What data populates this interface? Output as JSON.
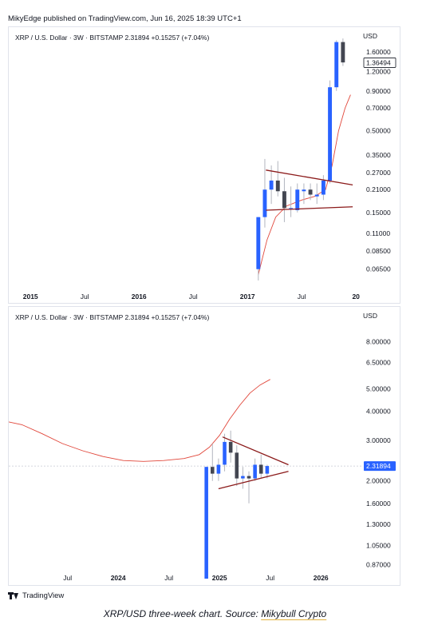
{
  "header": {
    "published": "MikyEdge published on TradingView.com, Jun 16, 2025 18:39 UTC+1"
  },
  "chart_data": [
    {
      "type": "candlestick",
      "legend": "XRP / U.S. Dollar · 3W · BITSTAMP  2.31894  +0.15257 (+7.04%)",
      "currency": "USD",
      "scale": "log",
      "ylim": [
        0.05,
        2.0
      ],
      "y_ticks": [
        "1.60000",
        "1.20000",
        "0.90000",
        "0.70000",
        "0.50000",
        "0.35000",
        "0.27000",
        "0.21000",
        "0.15000",
        "0.11000",
        "0.08500",
        "0.06500"
      ],
      "y_tick_values": [
        1.6,
        1.2,
        0.9,
        0.7,
        0.5,
        0.35,
        0.27,
        0.21,
        0.15,
        0.11,
        0.085,
        0.065
      ],
      "price_label": "1.36494",
      "price_label_value": 1.36494,
      "x_labels": [
        {
          "t": 0.0,
          "text": "2015",
          "bold": true
        },
        {
          "t": 0.5,
          "text": "Jul",
          "bold": false
        },
        {
          "t": 1.0,
          "text": "2016",
          "bold": true
        },
        {
          "t": 1.5,
          "text": "Jul",
          "bold": false
        },
        {
          "t": 2.0,
          "text": "2017",
          "bold": true
        },
        {
          "t": 2.5,
          "text": "Jul",
          "bold": false
        },
        {
          "t": 3.0,
          "text": "20",
          "bold": true
        }
      ],
      "xlim": [
        -0.2,
        3.05
      ],
      "candles": [
        {
          "t": 2.1,
          "o": 0.065,
          "h": 0.14,
          "l": 0.055,
          "c": 0.14
        },
        {
          "t": 2.16,
          "o": 0.14,
          "h": 0.33,
          "l": 0.12,
          "c": 0.21
        },
        {
          "t": 2.22,
          "o": 0.21,
          "h": 0.3,
          "l": 0.17,
          "c": 0.24
        },
        {
          "t": 2.28,
          "o": 0.24,
          "h": 0.32,
          "l": 0.19,
          "c": 0.205
        },
        {
          "t": 2.34,
          "o": 0.205,
          "h": 0.25,
          "l": 0.13,
          "c": 0.16
        },
        {
          "t": 2.4,
          "o": 0.16,
          "h": 0.22,
          "l": 0.14,
          "c": 0.16
        },
        {
          "t": 2.46,
          "o": 0.155,
          "h": 0.23,
          "l": 0.15,
          "c": 0.21
        },
        {
          "t": 2.52,
          "o": 0.205,
          "h": 0.23,
          "l": 0.17,
          "c": 0.21
        },
        {
          "t": 2.58,
          "o": 0.21,
          "h": 0.23,
          "l": 0.18,
          "c": 0.195
        },
        {
          "t": 2.64,
          "o": 0.19,
          "h": 0.23,
          "l": 0.17,
          "c": 0.195
        },
        {
          "t": 2.7,
          "o": 0.195,
          "h": 0.26,
          "l": 0.18,
          "c": 0.24
        },
        {
          "t": 2.76,
          "o": 0.24,
          "h": 1.05,
          "l": 0.23,
          "c": 0.95
        },
        {
          "t": 2.82,
          "o": 0.95,
          "h": 1.9,
          "l": 0.9,
          "c": 1.85
        },
        {
          "t": 2.88,
          "o": 1.85,
          "h": 1.95,
          "l": 1.3,
          "c": 1.37
        }
      ],
      "ma": [
        {
          "t": 2.1,
          "v": 0.06
        },
        {
          "t": 2.18,
          "v": 0.1
        },
        {
          "t": 2.26,
          "v": 0.14
        },
        {
          "t": 2.36,
          "v": 0.165
        },
        {
          "t": 2.5,
          "v": 0.18
        },
        {
          "t": 2.62,
          "v": 0.19
        },
        {
          "t": 2.72,
          "v": 0.21
        },
        {
          "t": 2.78,
          "v": 0.3
        },
        {
          "t": 2.84,
          "v": 0.5
        },
        {
          "t": 2.9,
          "v": 0.7
        },
        {
          "t": 2.95,
          "v": 0.85
        }
      ],
      "trendlines": [
        {
          "t1": 2.17,
          "v1": 0.28,
          "t2": 2.97,
          "v2": 0.225
        },
        {
          "t1": 2.17,
          "v1": 0.155,
          "t2": 2.97,
          "v2": 0.163
        }
      ]
    },
    {
      "type": "candlestick",
      "legend": "XRP / U.S. Dollar · 3W · BITSTAMP  2.31894  +0.15257 (+7.04%)",
      "currency": "USD",
      "scale": "log",
      "ylim": [
        0.78,
        9.5
      ],
      "y_ticks": [
        "8.00000",
        "6.50000",
        "5.00000",
        "4.00000",
        "3.00000",
        "2.00000",
        "1.60000",
        "1.30000",
        "1.05000",
        "0.87000"
      ],
      "y_tick_values": [
        8.0,
        6.5,
        5.0,
        4.0,
        3.0,
        2.0,
        1.6,
        1.3,
        1.05,
        0.87
      ],
      "price_label": "2.31894",
      "price_label_value": 2.31894,
      "x_labels": [
        {
          "t": 2023.5,
          "text": "Jul",
          "bold": false
        },
        {
          "t": 2024.0,
          "text": "2024",
          "bold": true
        },
        {
          "t": 2024.5,
          "text": "Jul",
          "bold": false
        },
        {
          "t": 2025.0,
          "text": "2025",
          "bold": true
        },
        {
          "t": 2025.5,
          "text": "Jul",
          "bold": false
        },
        {
          "t": 2026.0,
          "text": "2026",
          "bold": true
        }
      ],
      "xlim": [
        2022.92,
        2026.4
      ],
      "candles": [
        {
          "t": 2024.87,
          "o": 0.6,
          "h": 2.3,
          "l": 0.5,
          "c": 2.3
        },
        {
          "t": 2024.93,
          "o": 2.3,
          "h": 2.9,
          "l": 2.0,
          "c": 2.15
        },
        {
          "t": 2024.99,
          "o": 2.15,
          "h": 2.5,
          "l": 2.0,
          "c": 2.35
        },
        {
          "t": 2025.05,
          "o": 2.35,
          "h": 3.2,
          "l": 2.2,
          "c": 2.95
        },
        {
          "t": 2025.11,
          "o": 2.95,
          "h": 3.3,
          "l": 2.4,
          "c": 2.65
        },
        {
          "t": 2025.17,
          "o": 2.65,
          "h": 2.85,
          "l": 1.9,
          "c": 2.05
        },
        {
          "t": 2025.23,
          "o": 2.05,
          "h": 2.3,
          "l": 1.85,
          "c": 2.1
        },
        {
          "t": 2025.29,
          "o": 2.1,
          "h": 2.2,
          "l": 1.6,
          "c": 2.05
        },
        {
          "t": 2025.35,
          "o": 2.05,
          "h": 2.5,
          "l": 2.0,
          "c": 2.35
        },
        {
          "t": 2025.41,
          "o": 2.35,
          "h": 2.6,
          "l": 2.05,
          "c": 2.15
        },
        {
          "t": 2025.47,
          "o": 2.15,
          "h": 2.35,
          "l": 2.05,
          "c": 2.32
        }
      ],
      "ma": [
        {
          "t": 2022.92,
          "v": 3.6
        },
        {
          "t": 2023.05,
          "v": 3.5
        },
        {
          "t": 2023.25,
          "v": 3.2
        },
        {
          "t": 2023.45,
          "v": 2.9
        },
        {
          "t": 2023.65,
          "v": 2.7
        },
        {
          "t": 2023.85,
          "v": 2.55
        },
        {
          "t": 2024.05,
          "v": 2.45
        },
        {
          "t": 2024.25,
          "v": 2.43
        },
        {
          "t": 2024.45,
          "v": 2.45
        },
        {
          "t": 2024.65,
          "v": 2.5
        },
        {
          "t": 2024.8,
          "v": 2.6
        },
        {
          "t": 2024.9,
          "v": 2.8
        },
        {
          "t": 2025.0,
          "v": 3.15
        },
        {
          "t": 2025.1,
          "v": 3.7
        },
        {
          "t": 2025.2,
          "v": 4.25
        },
        {
          "t": 2025.3,
          "v": 4.8
        },
        {
          "t": 2025.4,
          "v": 5.2
        },
        {
          "t": 2025.5,
          "v": 5.5
        }
      ],
      "trendlines": [
        {
          "t1": 2025.03,
          "v1": 3.1,
          "t2": 2025.68,
          "v2": 2.35
        },
        {
          "t1": 2024.99,
          "v1": 1.85,
          "t2": 2025.68,
          "v2": 2.2
        }
      ],
      "price_line": 2.31894
    }
  ],
  "footer": {
    "brand": "TradingView"
  },
  "caption": {
    "text": "XRP/USD three-week chart. Source: ",
    "source": "Mikybull Crypto"
  },
  "colors": {
    "up": "#2962ff",
    "down": "#434651",
    "wick": "#b2b5be",
    "ma": "#e1463a",
    "trend": "#8b1a1a",
    "grid": "#f0f3fa",
    "price_line": "#c7cad3"
  }
}
